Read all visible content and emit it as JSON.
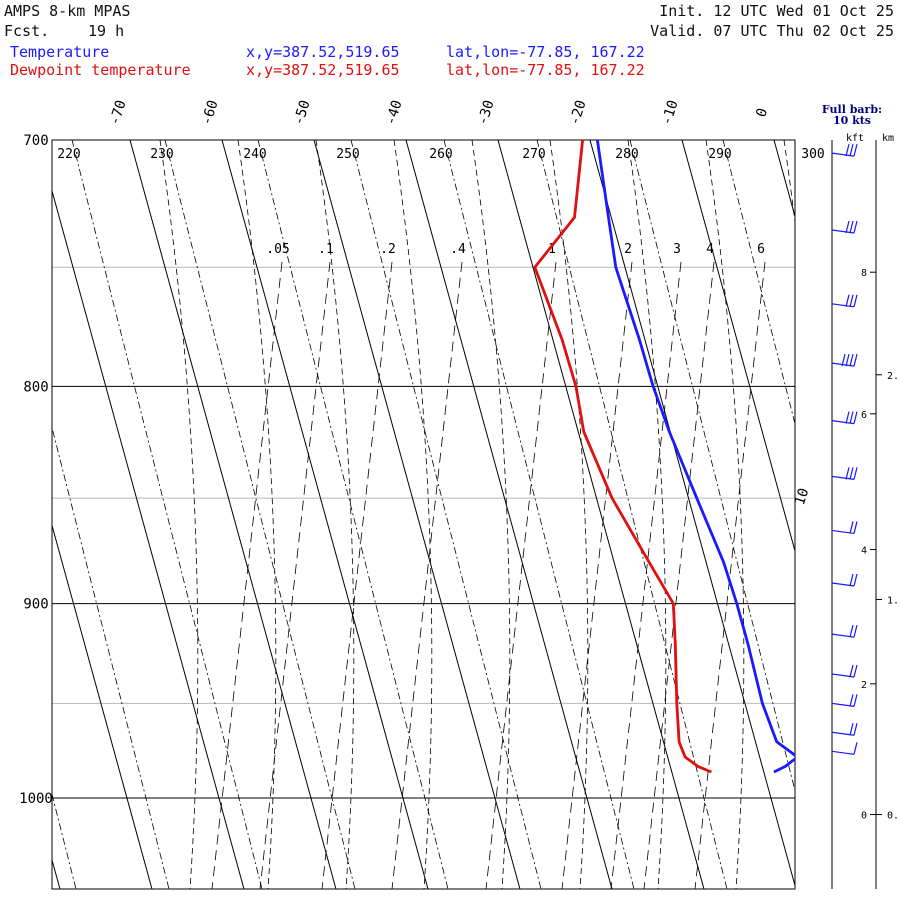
{
  "header": {
    "model": "AMPS 8-km MPAS",
    "fcst_label": "Fcst.",
    "fcst_value": "19 h",
    "init": "Init. 12 UTC Wed 01 Oct 25",
    "valid": "Valid. 07 UTC Thu 02 Oct 25"
  },
  "legend": {
    "temperature": {
      "name": "Temperature",
      "xy": "x,y=387.52,519.65",
      "latlon": "lat,lon=-77.85, 167.22",
      "color": "#1a1aff"
    },
    "dewpoint": {
      "name": "Dewpoint temperature",
      "xy": "x,y=387.52,519.65",
      "latlon": "lat,lon=-77.85, 167.22",
      "color": "#e01010"
    }
  },
  "barb_panel": {
    "title_line1": "Full barb:",
    "title_line2": "10 kts",
    "kft_label": "kft",
    "km_label": "km"
  },
  "chart_data": {
    "type": "line",
    "title": "Skew-T log-P sounding",
    "pressure_range_hpa": [
      700,
      1040
    ],
    "pressure_labels": [
      "700",
      "800",
      "900",
      "1000"
    ],
    "pressure_levels": [
      700,
      800,
      900,
      1000
    ],
    "minor_pressure_levels": [
      750,
      850,
      950
    ],
    "skew_isotherms_c": [
      -70,
      -60,
      -50,
      -40,
      -30,
      -20,
      -10,
      0
    ],
    "extra_isotherm_label": "10",
    "theta_labels_k": [
      220,
      230,
      240,
      250,
      260,
      270,
      280,
      290,
      300
    ],
    "mixing_ratio_labels": [
      ".05",
      ".1",
      ".2",
      ".4",
      "1",
      "2",
      "3",
      "4",
      "6"
    ],
    "series": [
      {
        "name": "Temperature",
        "color": "#1a1aff",
        "points": [
          {
            "p": 700,
            "t": -19.2
          },
          {
            "p": 730,
            "t": -20.3
          },
          {
            "p": 750,
            "t": -21.0
          },
          {
            "p": 780,
            "t": -20.6
          },
          {
            "p": 800,
            "t": -20.5
          },
          {
            "p": 820,
            "t": -20.1
          },
          {
            "p": 850,
            "t": -19.1
          },
          {
            "p": 880,
            "t": -18.1
          },
          {
            "p": 900,
            "t": -17.9
          },
          {
            "p": 920,
            "t": -17.9
          },
          {
            "p": 950,
            "t": -18.1
          },
          {
            "p": 970,
            "t": -17.7
          },
          {
            "p": 978,
            "t": -15.9
          },
          {
            "p": 983,
            "t": -17.5
          },
          {
            "p": 986,
            "t": -18.9
          }
        ]
      },
      {
        "name": "Dewpoint temperature",
        "color": "#e01010",
        "points": [
          {
            "p": 700,
            "t": -20.8
          },
          {
            "p": 730,
            "t": -24.0
          },
          {
            "p": 750,
            "t": -29.8
          },
          {
            "p": 780,
            "t": -29.0
          },
          {
            "p": 800,
            "t": -28.9
          },
          {
            "p": 820,
            "t": -29.4
          },
          {
            "p": 850,
            "t": -28.3
          },
          {
            "p": 880,
            "t": -26.2
          },
          {
            "p": 900,
            "t": -24.8
          },
          {
            "p": 920,
            "t": -25.8
          },
          {
            "p": 950,
            "t": -27.4
          },
          {
            "p": 970,
            "t": -28.3
          },
          {
            "p": 978,
            "t": -28.1
          },
          {
            "p": 983,
            "t": -27.0
          },
          {
            "p": 986,
            "t": -25.7
          }
        ]
      }
    ],
    "wind_barbs": [
      {
        "p": 705,
        "speed_kt": 30
      },
      {
        "p": 735,
        "speed_kt": 30
      },
      {
        "p": 765,
        "speed_kt": 30
      },
      {
        "p": 790,
        "speed_kt": 40
      },
      {
        "p": 815,
        "speed_kt": 30
      },
      {
        "p": 840,
        "speed_kt": 30
      },
      {
        "p": 865,
        "speed_kt": 20
      },
      {
        "p": 890,
        "speed_kt": 20
      },
      {
        "p": 915,
        "speed_kt": 20
      },
      {
        "p": 935,
        "speed_kt": 20
      },
      {
        "p": 950,
        "speed_kt": 20
      },
      {
        "p": 965,
        "speed_kt": 20
      },
      {
        "p": 975,
        "speed_kt": 10
      }
    ],
    "height_kft_ticks": [
      {
        "label": "0",
        "p": 1009
      },
      {
        "label": "2",
        "p": 940
      },
      {
        "label": "4",
        "p": 874
      },
      {
        "label": "6",
        "p": 812
      },
      {
        "label": "8",
        "p": 752
      }
    ],
    "height_km_ticks": [
      {
        "label": "0.",
        "p": 1009
      },
      {
        "label": "1.",
        "p": 898
      },
      {
        "label": "2.",
        "p": 795
      }
    ]
  }
}
